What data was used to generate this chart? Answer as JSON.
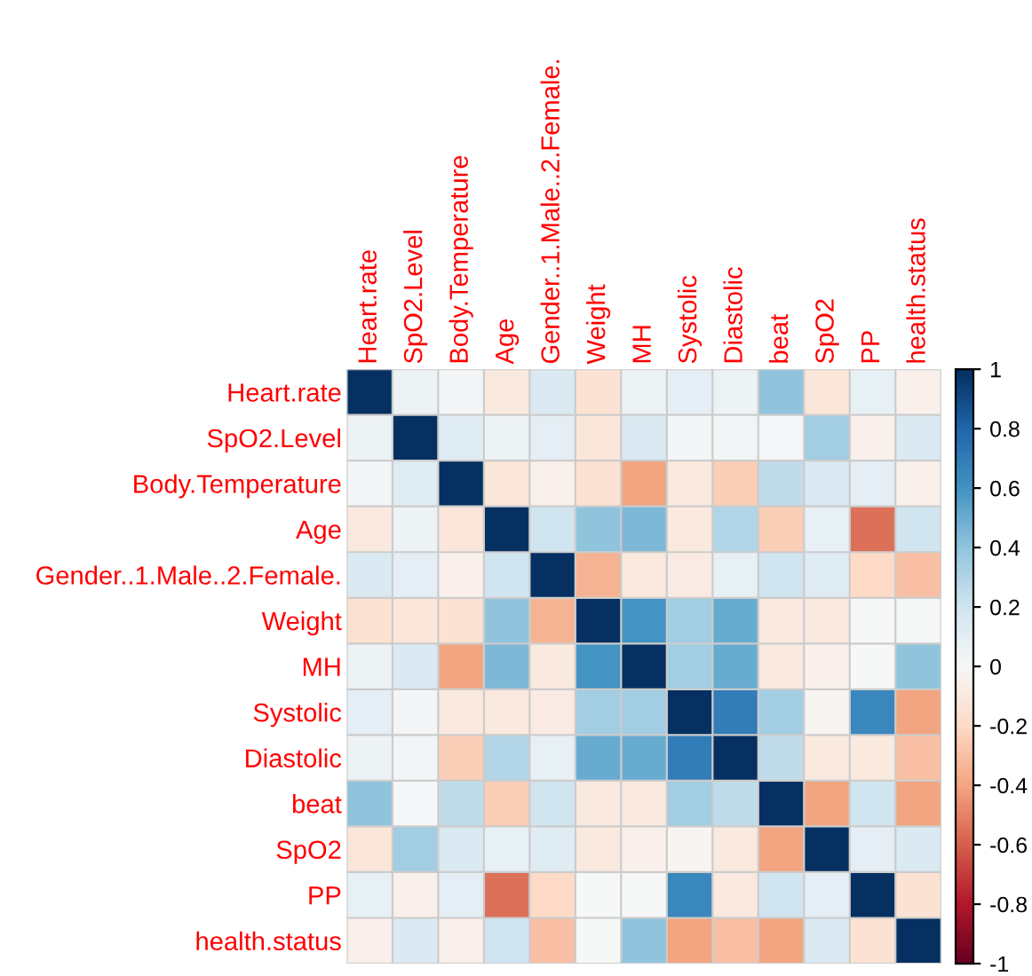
{
  "chart_data": {
    "type": "heatmap",
    "grid": true,
    "categories": [
      "Heart.rate",
      "SpO2.Level",
      "Body.Temperature",
      "Age",
      "Gender..1.Male..2.Female.",
      "Weight",
      "MH",
      "Systolic",
      "Diastolic",
      "beat",
      "SpO2",
      "PP",
      "health.status"
    ],
    "y_categories": [
      "Heart.rate",
      "SpO2.Level",
      "Body.Temperature",
      "Age",
      "Gender..1.Male..2.Female.",
      "Weight",
      "MH",
      "Systolic",
      "Diastolic",
      "beat",
      "SpO2",
      "PP",
      "health.status"
    ],
    "cells": [
      [
        1,
        0.05,
        0.02,
        -0.1,
        0.15,
        -0.15,
        0.05,
        0.1,
        0.05,
        0.4,
        -0.12,
        0.08,
        -0.05
      ],
      [
        0.05,
        1,
        0.12,
        0.05,
        0.1,
        -0.12,
        0.15,
        0.02,
        0.03,
        0.01,
        0.35,
        -0.05,
        0.15
      ],
      [
        0.02,
        0.12,
        1,
        -0.12,
        -0.05,
        -0.15,
        -0.4,
        -0.1,
        -0.25,
        0.25,
        0.15,
        0.1,
        -0.05
      ],
      [
        -0.1,
        0.05,
        -0.12,
        1,
        0.2,
        0.4,
        0.45,
        -0.1,
        0.3,
        -0.25,
        0.08,
        -0.55,
        0.2
      ],
      [
        0.15,
        0.1,
        -0.05,
        0.2,
        1,
        -0.35,
        -0.1,
        -0.08,
        0.08,
        0.2,
        0.12,
        -0.2,
        -0.3
      ],
      [
        -0.15,
        -0.12,
        -0.15,
        0.4,
        -0.35,
        1,
        0.6,
        0.35,
        0.5,
        -0.1,
        -0.1,
        0,
        0
      ],
      [
        0.05,
        0.15,
        -0.4,
        0.45,
        -0.1,
        0.6,
        1,
        0.35,
        0.5,
        -0.1,
        -0.05,
        0,
        0.4
      ],
      [
        0.1,
        0.02,
        -0.1,
        -0.1,
        -0.08,
        0.35,
        0.35,
        1,
        0.7,
        0.35,
        -0.02,
        0.65,
        -0.4
      ],
      [
        0.05,
        0.03,
        -0.25,
        0.3,
        0.08,
        0.5,
        0.5,
        0.7,
        1,
        0.25,
        -0.1,
        -0.1,
        -0.3
      ],
      [
        0.4,
        0.01,
        0.25,
        -0.25,
        0.2,
        -0.1,
        -0.1,
        0.35,
        0.25,
        1,
        -0.4,
        0.2,
        -0.4
      ],
      [
        -0.12,
        0.35,
        0.15,
        0.08,
        0.12,
        -0.1,
        -0.05,
        -0.02,
        -0.1,
        -0.4,
        1,
        0.1,
        0.15
      ],
      [
        0.08,
        -0.05,
        0.1,
        -0.55,
        -0.2,
        0,
        0,
        0.65,
        -0.1,
        0.2,
        0.1,
        1,
        -0.15
      ],
      [
        -0.05,
        0.15,
        -0.05,
        0.2,
        -0.3,
        0,
        0.4,
        -0.4,
        -0.3,
        -0.4,
        0.15,
        -0.15,
        1
      ]
    ],
    "clim": [
      -1,
      1
    ],
    "cticks": [
      -1,
      -0.8,
      -0.6,
      -0.4,
      -0.2,
      0,
      0.2,
      0.4,
      0.6,
      0.8,
      1
    ]
  }
}
